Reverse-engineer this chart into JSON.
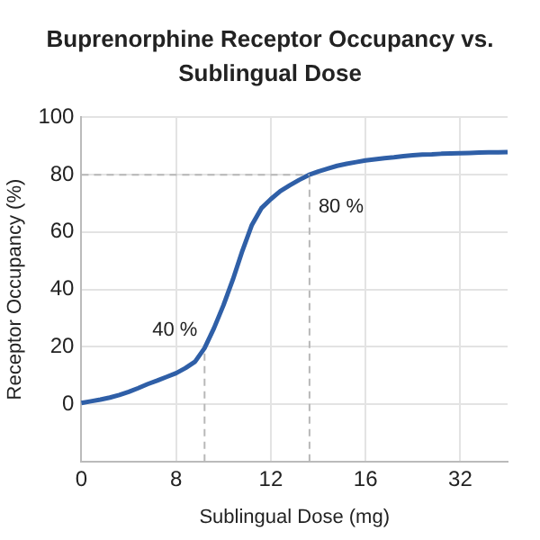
{
  "chart_data": {
    "type": "line",
    "title": "Buprenorphine Receptor Occupancy vs. Sublingual Dose",
    "xlabel": "Sublingual Dose (mg)",
    "ylabel": "Receptor Occupancy (%)",
    "categories": [
      "0",
      null,
      null,
      null,
      null,
      null,
      null,
      null,
      null,
      null,
      "8",
      null,
      null,
      null,
      null,
      null,
      null,
      null,
      null,
      null,
      "12",
      null,
      null,
      null,
      null,
      null,
      null,
      null,
      null,
      null,
      "16",
      null,
      null,
      null,
      null,
      null,
      null,
      null,
      null,
      null,
      "32",
      null,
      null,
      null,
      null,
      null
    ],
    "series": [
      {
        "color": "#2f5fa7",
        "values": [
          0.4,
          1,
          1.6,
          2.3,
          3.2,
          4.3,
          5.6,
          7,
          8.2,
          9.5,
          10.8,
          12.6,
          14.8,
          19.5,
          26.5,
          34.5,
          43.5,
          53.5,
          62.5,
          68.3,
          71.5,
          74.3,
          76.3,
          78.2,
          79.9,
          81.1,
          82.1,
          83.1,
          83.8,
          84.4,
          85,
          85.4,
          85.8,
          86.1,
          86.5,
          86.8,
          87,
          87.1,
          87.3,
          87.4,
          87.5,
          87.6,
          87.7,
          87.8,
          87.8,
          87.9
        ]
      }
    ],
    "ylim": [
      -20,
      100
    ],
    "yticks": [
      0,
      20,
      40,
      60,
      80,
      100
    ],
    "grid": true,
    "marker": "none",
    "line_style": "solid",
    "annotations": [
      "40 %",
      {
        "text": "80 %",
        "y": 80
      }
    ],
    "ref_lines": [
      {
        "axis": "y",
        "value": 80,
        "color": "#b8b8b8",
        "line_style": "dashed"
      }
    ]
  }
}
